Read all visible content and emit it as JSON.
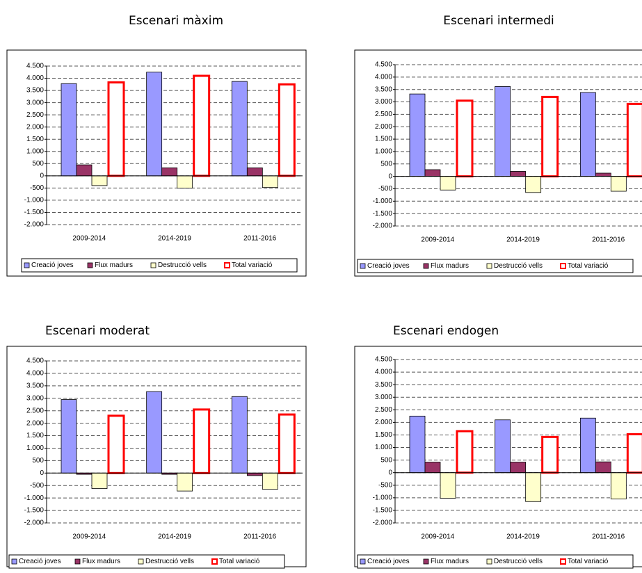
{
  "chart_data": [
    {
      "type": "bar",
      "title": "Escenari màxim",
      "categories": [
        "2009-2014",
        "2014-2019",
        "2011-2016"
      ],
      "series": [
        {
          "name": "Creació joves",
          "color": "#9999ff",
          "values": [
            3780,
            4250,
            3870
          ]
        },
        {
          "name": "Flux madurs",
          "color": "#993366",
          "values": [
            450,
            330,
            330
          ]
        },
        {
          "name": "Destrucció vells",
          "color": "#ffffcc",
          "values": [
            -400,
            -500,
            -480
          ]
        },
        {
          "name": "Total variació",
          "color": "#ff0000",
          "values": [
            3830,
            4100,
            3750
          ]
        }
      ],
      "ylim": [
        -2000,
        4500
      ],
      "yticks": [
        {
          "value": 4500,
          "label": "4.500"
        },
        {
          "value": 4000,
          "label": "4.000"
        },
        {
          "value": 3500,
          "label": "3.500"
        },
        {
          "value": 3000,
          "label": "3.000"
        },
        {
          "value": 2500,
          "label": "2.500"
        },
        {
          "value": 2000,
          "label": "2.000"
        },
        {
          "value": 1500,
          "label": "1.500"
        },
        {
          "value": 1000,
          "label": "1.000"
        },
        500,
        0,
        -500,
        {
          "value": -1000,
          "label": "-1.000"
        },
        {
          "value": -1500,
          "label": "-1.500"
        },
        {
          "value": -2000,
          "label": "-2.000"
        }
      ],
      "grid": true
    },
    {
      "type": "bar",
      "title": "Escenari intermedi",
      "categories": [
        "2009-2014",
        "2014-2019",
        "2011-2016"
      ],
      "series": [
        {
          "name": "Creació joves",
          "color": "#9999ff",
          "values": [
            3320,
            3620,
            3380
          ]
        },
        {
          "name": "Flux madurs",
          "color": "#993366",
          "values": [
            270,
            200,
            130
          ]
        },
        {
          "name": "Destrucció vells",
          "color": "#ffffcc",
          "values": [
            -550,
            -650,
            -600
          ]
        },
        {
          "name": "Total variació",
          "color": "#ff0000",
          "values": [
            3050,
            3200,
            2920
          ]
        }
      ],
      "ylim": [
        -2000,
        4500
      ],
      "yticks": [
        {
          "value": 4500,
          "label": "4.500"
        },
        {
          "value": 4000,
          "label": "4.000"
        },
        {
          "value": 3500,
          "label": "3.500"
        },
        {
          "value": 3000,
          "label": "3.000"
        },
        {
          "value": 2500,
          "label": "2.500"
        },
        {
          "value": 2000,
          "label": "2.000"
        },
        {
          "value": 1500,
          "label": "1.500"
        },
        {
          "value": 1000,
          "label": "1.000"
        },
        500,
        0,
        -500,
        {
          "value": -1000,
          "label": "-1.000"
        },
        {
          "value": -1500,
          "label": "-1.500"
        },
        {
          "value": -2000,
          "label": "-2.000"
        }
      ],
      "grid": true
    },
    {
      "type": "bar",
      "title": "Escenari moderat",
      "categories": [
        "2009-2014",
        "2014-2019",
        "2011-2016"
      ],
      "series": [
        {
          "name": "Creació joves",
          "color": "#9999ff",
          "values": [
            2950,
            3270,
            3070
          ]
        },
        {
          "name": "Flux madurs",
          "color": "#993366",
          "values": [
            -50,
            -50,
            -100
          ]
        },
        {
          "name": "Destrucció vells",
          "color": "#ffffcc",
          "values": [
            -620,
            -720,
            -650
          ]
        },
        {
          "name": "Total variació",
          "color": "#ff0000",
          "values": [
            2300,
            2550,
            2350
          ]
        }
      ],
      "ylim": [
        -2000,
        4500
      ],
      "yticks": [
        {
          "value": 4500,
          "label": "4.500"
        },
        {
          "value": 4000,
          "label": "4.000"
        },
        {
          "value": 3500,
          "label": "3.500"
        },
        {
          "value": 3000,
          "label": "3.000"
        },
        {
          "value": 2500,
          "label": "2.500"
        },
        {
          "value": 2000,
          "label": "2.000"
        },
        {
          "value": 1500,
          "label": "1.500"
        },
        {
          "value": 1000,
          "label": "1.000"
        },
        500,
        0,
        -500,
        {
          "value": -1000,
          "label": "-1.000"
        },
        {
          "value": -1500,
          "label": "-1.500"
        },
        {
          "value": -2000,
          "label": "-2.000"
        }
      ],
      "grid": true
    },
    {
      "type": "bar",
      "title": "Escenari endogen",
      "categories": [
        "2009-2014",
        "2014-2019",
        "2011-2016"
      ],
      "series": [
        {
          "name": "Creació joves",
          "color": "#9999ff",
          "values": [
            2250,
            2100,
            2170
          ]
        },
        {
          "name": "Flux madurs",
          "color": "#993366",
          "values": [
            420,
            420,
            430
          ]
        },
        {
          "name": "Destrucció vells",
          "color": "#ffffcc",
          "values": [
            -1020,
            -1150,
            -1050
          ]
        },
        {
          "name": "Total variació",
          "color": "#ff0000",
          "values": [
            1650,
            1420,
            1530
          ]
        }
      ],
      "ylim": [
        -2000,
        4500
      ],
      "yticks": [
        {
          "value": 4500,
          "label": "4.500"
        },
        {
          "value": 4000,
          "label": "4.000"
        },
        {
          "value": 3500,
          "label": "3.500"
        },
        {
          "value": 3000,
          "label": "3.000"
        },
        {
          "value": 2500,
          "label": "2.500"
        },
        {
          "value": 2000,
          "label": "2.000"
        },
        {
          "value": 1500,
          "label": "1.500"
        },
        {
          "value": 1000,
          "label": "1.000"
        },
        500,
        0,
        -500,
        {
          "value": -1000,
          "label": "-1.000"
        },
        {
          "value": -1500,
          "label": "-1.500"
        },
        {
          "value": -2000,
          "label": "-2.000"
        }
      ],
      "grid": true
    }
  ]
}
